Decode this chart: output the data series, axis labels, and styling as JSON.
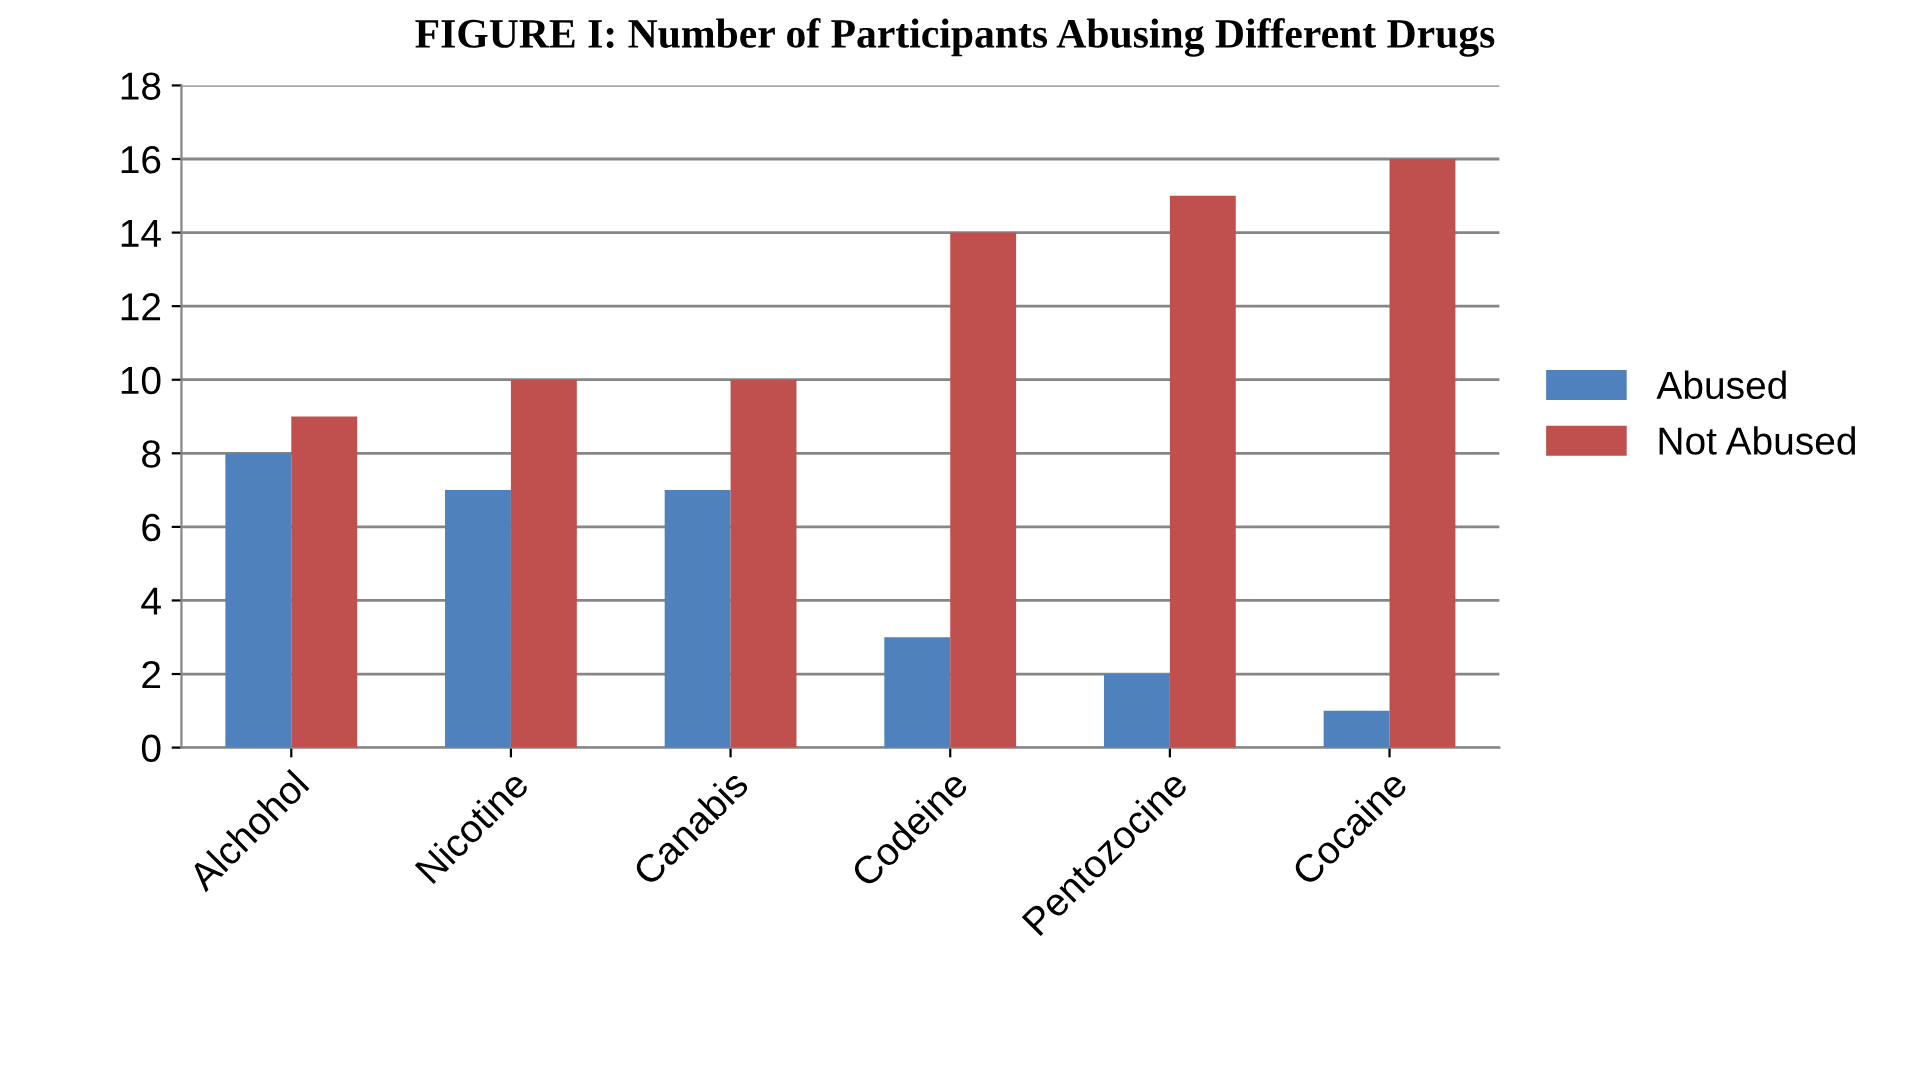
{
  "chart_data": {
    "type": "bar",
    "title": "FIGURE I: Number of Participants Abusing Different Drugs",
    "categories": [
      "Alchohol",
      "Nicotine",
      "Canabis",
      "Codeine",
      "Pentozocine",
      "Cocaine"
    ],
    "series": [
      {
        "name": "Abused",
        "color": "#4f81bd",
        "values": [
          8,
          7,
          7,
          3,
          2,
          1
        ]
      },
      {
        "name": "Not Abused",
        "color": "#c0504d",
        "values": [
          9,
          10,
          10,
          14,
          15,
          16
        ]
      }
    ],
    "ylim": [
      0,
      18
    ],
    "yticks": [
      0,
      2,
      4,
      6,
      8,
      10,
      12,
      14,
      16,
      18
    ],
    "grid": "y",
    "legend": "right"
  }
}
